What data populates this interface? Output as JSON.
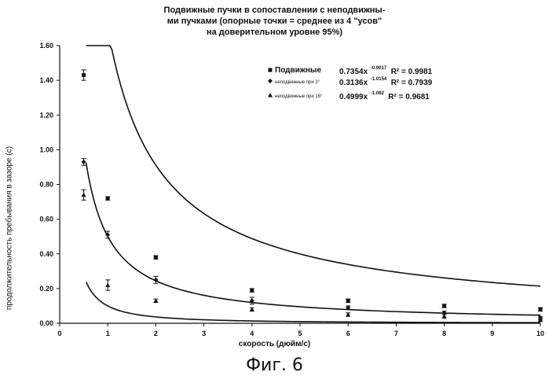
{
  "figure": {
    "title_lines": [
      "Подвижные пучки в сопоставлении с неподвижны-",
      "ми пучками (опорные точки = среднее из 4 \"усов\"",
      "на доверительном уровне 95%)"
    ],
    "caption": "Фиг. 6"
  },
  "chart_data": {
    "type": "scatter",
    "xlabel": "скорость (дюйм/с)",
    "ylabel": "продолжительность пребывания в зазоре (с)",
    "xlim": [
      0,
      10
    ],
    "ylim": [
      0,
      1.6
    ],
    "x_ticks": [
      "0",
      "1",
      "2",
      "3",
      "4",
      "5",
      "6",
      "7",
      "8",
      "9",
      "10"
    ],
    "y_ticks": [
      "0.00",
      "0.20",
      "0.40",
      "0.60",
      "0.80",
      "1.00",
      "1.20",
      "1.40",
      "1.60"
    ],
    "grid": false,
    "legend_position": "top-right",
    "series": [
      {
        "name": "Подвижные",
        "marker": "square",
        "equation": "0.7354x",
        "exponent": "-0.9017",
        "r2": "R² = 0.9981",
        "x": [
          0.5,
          1,
          2,
          4,
          6,
          8,
          10
        ],
        "y": [
          1.43,
          0.72,
          0.38,
          0.19,
          0.13,
          0.1,
          0.08
        ],
        "err": [
          0.03,
          0.01,
          0.01,
          0.01,
          0.01,
          0.01,
          0.01
        ]
      },
      {
        "name": "неподвижные при 3°",
        "marker": "diamond",
        "equation": "0.3136x",
        "exponent": "-1.0154",
        "r2": "R² = 0.7939",
        "x": [
          0.5,
          1,
          2,
          4,
          6,
          8,
          10
        ],
        "y": [
          0.93,
          0.51,
          0.25,
          0.13,
          0.09,
          0.06,
          0.03
        ],
        "err": [
          0.02,
          0.02,
          0.02,
          0.02,
          0.01,
          0.01,
          0.01
        ]
      },
      {
        "name": "неподвижные при 16°",
        "marker": "triangle",
        "equation": "0.4999x",
        "exponent": "-1.082",
        "r2": "R² = 0.9681",
        "x": [
          0.5,
          1,
          2,
          4,
          6,
          8,
          10
        ],
        "y": [
          0.74,
          0.22,
          0.13,
          0.08,
          0.05,
          0.04,
          0.02
        ],
        "err": [
          0.03,
          0.03,
          0.01,
          0.01,
          0.01,
          0.01,
          0.01
        ]
      }
    ],
    "fit_curves": [
      {
        "a": 1.7,
        "b": 0.9,
        "x0": 0.55,
        "x1": 10
      },
      {
        "a": 0.5,
        "b": 1.03,
        "x0": 0.55,
        "x1": 10
      },
      {
        "a": 0.1,
        "b": 1.45,
        "x0": 0.55,
        "x1": 10
      }
    ]
  }
}
